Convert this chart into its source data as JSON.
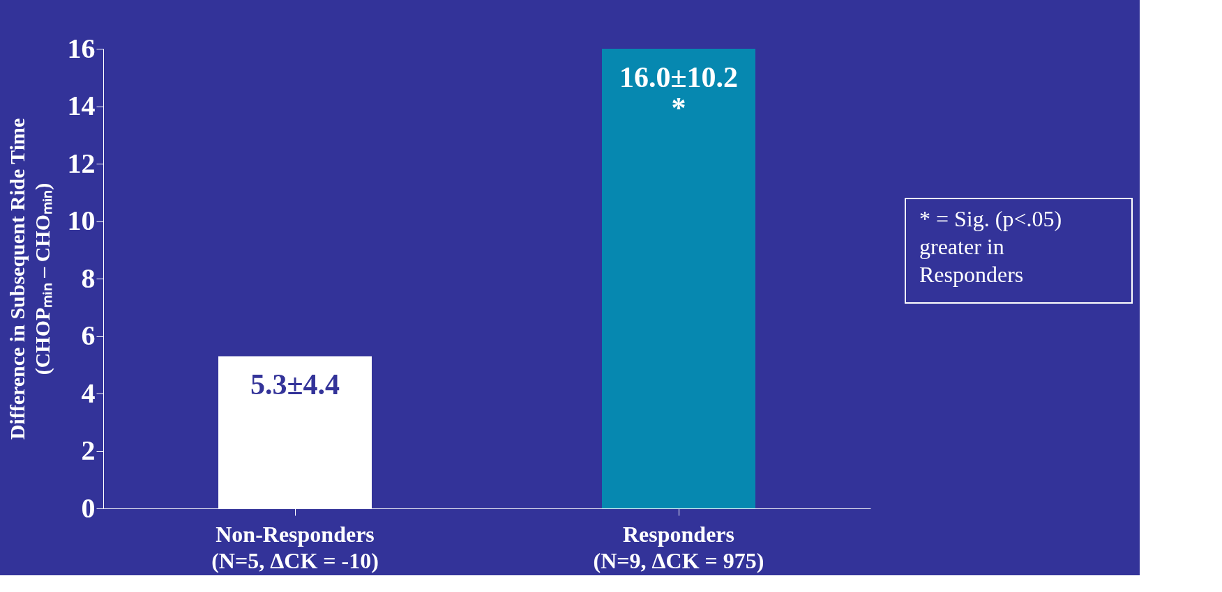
{
  "chart_data": {
    "type": "bar",
    "ylabel": "Difference in Subsequent Ride Time\n(CHOPₘᵢₙ – CHOₘᵢₙ)",
    "categories": [
      "Non-Responders\n(N=5, ΔCK = -10)",
      "Responders\n(N=9, ΔCK = 975)"
    ],
    "values": [
      5.3,
      16.0
    ],
    "colors": [
      "#ffffff",
      "#0688b0"
    ],
    "value_labels": [
      "5.3±4.4",
      "16.0±10.2\n*"
    ],
    "annotations": [
      "* = Sig. (p<.05)\n    greater in\n    Responders"
    ],
    "ylim": [
      0,
      16
    ],
    "yticks": [
      0,
      2,
      4,
      6,
      8,
      10,
      12,
      14,
      16
    ]
  }
}
